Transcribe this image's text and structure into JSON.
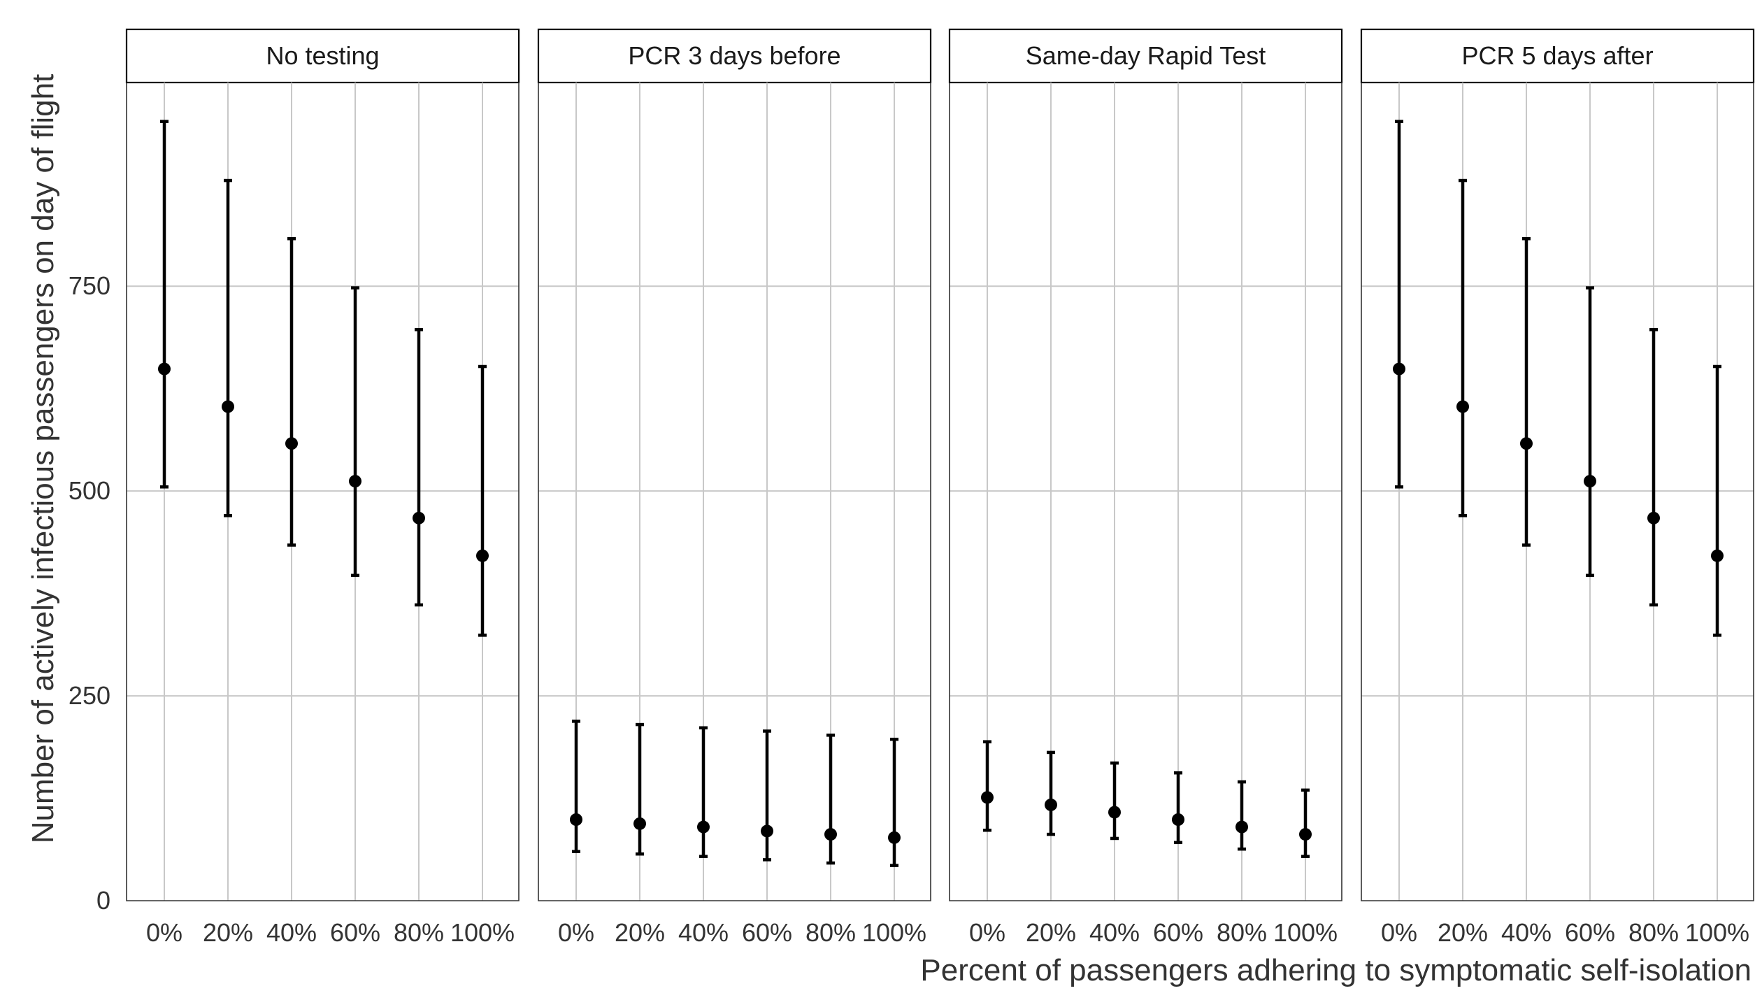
{
  "chart_data": {
    "type": "errorbar",
    "xlabel": "Percent of passengers adhering to symptomatic self-isolation",
    "ylabel": "Number of actively infectious passengers on day of flight",
    "categories": [
      "0%",
      "20%",
      "40%",
      "60%",
      "80%",
      "100%"
    ],
    "yticks": [
      0,
      250,
      500,
      750
    ],
    "ylim": [
      0,
      1000
    ],
    "grid": true,
    "facets": [
      {
        "title": "No testing",
        "mean": [
          649,
          603,
          558,
          512,
          467,
          421
        ],
        "lower": [
          505,
          470,
          434,
          397,
          361,
          324
        ],
        "upper": [
          951,
          879,
          808,
          748,
          697,
          652
        ]
      },
      {
        "title": "PCR 3 days before",
        "mean": [
          99,
          94,
          90,
          85,
          81,
          77
        ],
        "lower": [
          60,
          57,
          54,
          50,
          46,
          43
        ],
        "upper": [
          219,
          215,
          211,
          207,
          202,
          197
        ]
      },
      {
        "title": "Same-day Rapid Test",
        "mean": [
          126,
          117,
          108,
          99,
          90,
          81
        ],
        "lower": [
          86,
          81,
          76,
          71,
          63,
          54
        ],
        "upper": [
          194,
          181,
          168,
          156,
          145,
          135
        ]
      },
      {
        "title": "PCR 5 days after",
        "mean": [
          649,
          603,
          558,
          512,
          467,
          421
        ],
        "lower": [
          505,
          470,
          434,
          397,
          361,
          324
        ],
        "upper": [
          951,
          879,
          808,
          748,
          697,
          652
        ]
      }
    ]
  }
}
